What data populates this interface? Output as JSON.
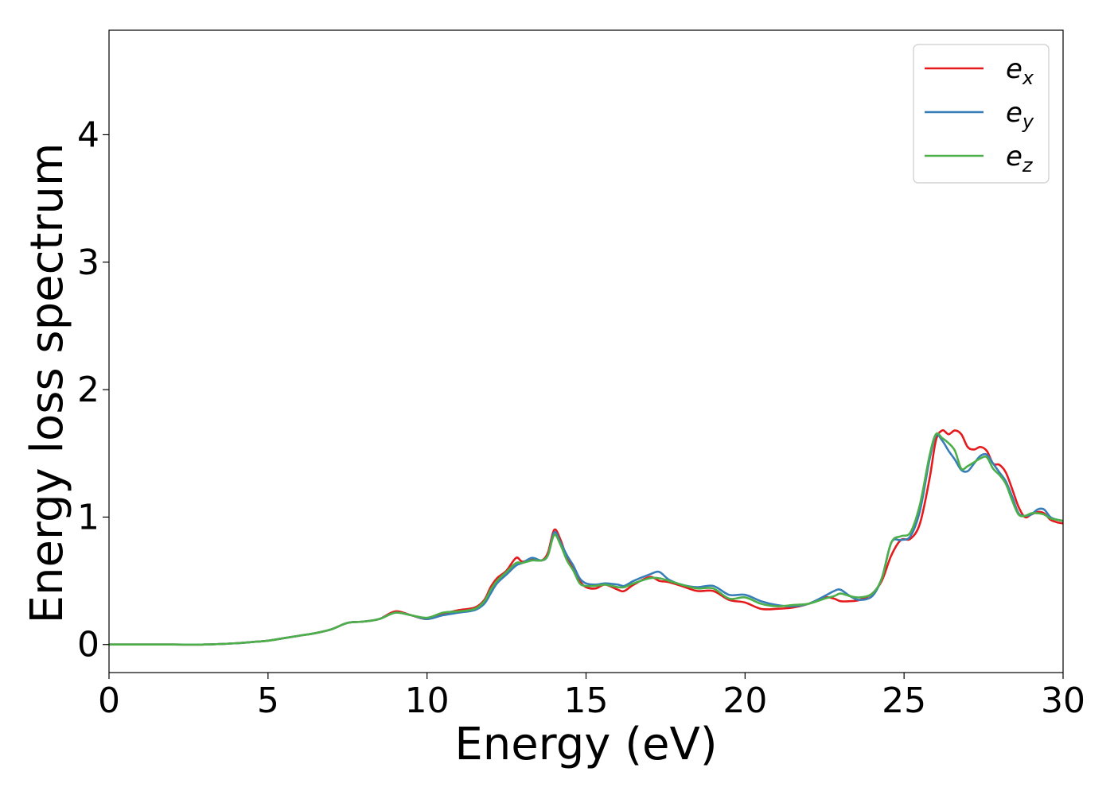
{
  "chart_data": {
    "type": "line",
    "title": "",
    "xlabel": "Energy (eV)",
    "ylabel": "Energy loss spectrum",
    "xlim": [
      0,
      30
    ],
    "ylim": [
      -0.22,
      4.82
    ],
    "xticks": [
      0,
      5,
      10,
      15,
      20,
      25,
      30
    ],
    "xtick_labels": [
      "0",
      "5",
      "10",
      "15",
      "20",
      "25",
      "30"
    ],
    "yticks": [
      0,
      1,
      2,
      3,
      4
    ],
    "ytick_labels": [
      "0",
      "1",
      "2",
      "3",
      "4"
    ],
    "grid": false,
    "legend_position": "top-right",
    "series": [
      {
        "name": "e_x",
        "legend_base": "e",
        "legend_sub": "x",
        "color": "#e41a1c",
        "x": [
          0,
          1,
          2,
          3,
          4,
          4.5,
          5,
          5.5,
          6,
          6.5,
          7,
          7.5,
          8,
          8.5,
          9,
          9.5,
          10,
          10.5,
          11,
          11.5,
          11.8,
          12,
          12.2,
          12.5,
          12.8,
          13,
          13.3,
          13.6,
          13.8,
          14,
          14.2,
          14.4,
          14.6,
          14.8,
          15,
          15.3,
          15.6,
          16,
          16.2,
          16.5,
          17,
          17.3,
          17.6,
          18,
          18.5,
          19,
          19.5,
          20,
          20.5,
          21,
          21.5,
          22,
          22.5,
          22.8,
          23,
          23.3,
          23.6,
          24,
          24.3,
          24.6,
          24.9,
          25.2,
          25.5,
          25.8,
          26,
          26.2,
          26.4,
          26.6,
          26.8,
          27,
          27.2,
          27.4,
          27.6,
          27.8,
          28,
          28.2,
          28.4,
          28.6,
          28.8,
          29,
          29.2,
          29.4,
          29.6,
          29.8,
          30
        ],
        "y": [
          0,
          0,
          0,
          0,
          0.01,
          0.02,
          0.03,
          0.05,
          0.07,
          0.09,
          0.12,
          0.17,
          0.18,
          0.2,
          0.26,
          0.23,
          0.2,
          0.24,
          0.27,
          0.29,
          0.35,
          0.45,
          0.52,
          0.58,
          0.68,
          0.65,
          0.67,
          0.66,
          0.72,
          0.9,
          0.82,
          0.68,
          0.6,
          0.5,
          0.45,
          0.44,
          0.47,
          0.43,
          0.42,
          0.47,
          0.53,
          0.5,
          0.49,
          0.46,
          0.42,
          0.42,
          0.35,
          0.33,
          0.28,
          0.28,
          0.29,
          0.32,
          0.37,
          0.36,
          0.34,
          0.34,
          0.35,
          0.4,
          0.5,
          0.7,
          0.82,
          0.83,
          0.95,
          1.3,
          1.6,
          1.68,
          1.65,
          1.68,
          1.65,
          1.55,
          1.53,
          1.55,
          1.52,
          1.42,
          1.41,
          1.35,
          1.22,
          1.08,
          1.0,
          1.02,
          1.04,
          1.03,
          0.98,
          0.96,
          0.95
        ]
      },
      {
        "name": "e_y",
        "legend_base": "e",
        "legend_sub": "y",
        "color": "#377eb8",
        "x": [
          0,
          1,
          2,
          3,
          4,
          4.5,
          5,
          5.5,
          6,
          6.5,
          7,
          7.5,
          8,
          8.5,
          9,
          9.5,
          10,
          10.5,
          11,
          11.5,
          11.8,
          12,
          12.2,
          12.5,
          12.8,
          13,
          13.3,
          13.6,
          13.8,
          14,
          14.2,
          14.4,
          14.6,
          14.8,
          15,
          15.3,
          15.6,
          16,
          16.2,
          16.5,
          17,
          17.3,
          17.6,
          18,
          18.5,
          19,
          19.5,
          20,
          20.5,
          21,
          21.5,
          22,
          22.5,
          22.8,
          23,
          23.3,
          23.6,
          24,
          24.3,
          24.6,
          24.9,
          25.2,
          25.5,
          25.8,
          26,
          26.2,
          26.4,
          26.6,
          26.8,
          27,
          27.2,
          27.4,
          27.6,
          27.8,
          28,
          28.2,
          28.4,
          28.6,
          28.8,
          29,
          29.2,
          29.4,
          29.6,
          29.8,
          30
        ],
        "y": [
          0,
          0,
          0,
          0,
          0.01,
          0.02,
          0.03,
          0.05,
          0.07,
          0.09,
          0.12,
          0.17,
          0.18,
          0.2,
          0.25,
          0.23,
          0.2,
          0.23,
          0.25,
          0.27,
          0.32,
          0.4,
          0.48,
          0.55,
          0.62,
          0.64,
          0.68,
          0.66,
          0.7,
          0.88,
          0.8,
          0.7,
          0.62,
          0.52,
          0.48,
          0.47,
          0.48,
          0.47,
          0.46,
          0.5,
          0.55,
          0.57,
          0.51,
          0.47,
          0.45,
          0.46,
          0.39,
          0.39,
          0.34,
          0.31,
          0.3,
          0.32,
          0.38,
          0.42,
          0.43,
          0.38,
          0.35,
          0.38,
          0.52,
          0.8,
          0.82,
          0.85,
          1.05,
          1.45,
          1.64,
          1.6,
          1.52,
          1.45,
          1.37,
          1.36,
          1.42,
          1.48,
          1.49,
          1.42,
          1.35,
          1.28,
          1.16,
          1.03,
          1.01,
          1.02,
          1.06,
          1.06,
          1.0,
          0.98,
          0.97
        ]
      },
      {
        "name": "e_z",
        "legend_base": "e",
        "legend_sub": "z",
        "color": "#4daf4a",
        "x": [
          0,
          1,
          2,
          3,
          4,
          4.5,
          5,
          5.5,
          6,
          6.5,
          7,
          7.5,
          8,
          8.5,
          9,
          9.5,
          10,
          10.5,
          11,
          11.5,
          11.8,
          12,
          12.2,
          12.5,
          12.8,
          13,
          13.3,
          13.6,
          13.8,
          14,
          14.2,
          14.4,
          14.6,
          14.8,
          15,
          15.3,
          15.6,
          16,
          16.2,
          16.5,
          17,
          17.3,
          17.6,
          18,
          18.5,
          19,
          19.5,
          20,
          20.5,
          21,
          21.5,
          22,
          22.5,
          22.8,
          23,
          23.3,
          23.6,
          24,
          24.3,
          24.6,
          24.9,
          25.2,
          25.5,
          25.8,
          26,
          26.2,
          26.4,
          26.6,
          26.8,
          27,
          27.2,
          27.4,
          27.6,
          27.8,
          28,
          28.2,
          28.4,
          28.6,
          28.8,
          29,
          29.2,
          29.4,
          29.6,
          29.8,
          30
        ],
        "y": [
          0,
          0,
          0,
          0,
          0.01,
          0.02,
          0.03,
          0.05,
          0.07,
          0.09,
          0.12,
          0.17,
          0.18,
          0.2,
          0.25,
          0.23,
          0.21,
          0.25,
          0.26,
          0.28,
          0.34,
          0.43,
          0.5,
          0.57,
          0.64,
          0.64,
          0.66,
          0.66,
          0.7,
          0.86,
          0.78,
          0.66,
          0.58,
          0.48,
          0.46,
          0.46,
          0.47,
          0.45,
          0.45,
          0.48,
          0.52,
          0.52,
          0.5,
          0.47,
          0.44,
          0.44,
          0.36,
          0.37,
          0.32,
          0.3,
          0.31,
          0.32,
          0.36,
          0.38,
          0.4,
          0.38,
          0.37,
          0.4,
          0.52,
          0.8,
          0.85,
          0.88,
          1.1,
          1.48,
          1.65,
          1.62,
          1.58,
          1.52,
          1.38,
          1.4,
          1.43,
          1.46,
          1.47,
          1.38,
          1.33,
          1.26,
          1.13,
          1.02,
          1.01,
          1.03,
          1.03,
          1.02,
          0.99,
          0.98,
          0.97
        ]
      }
    ]
  }
}
